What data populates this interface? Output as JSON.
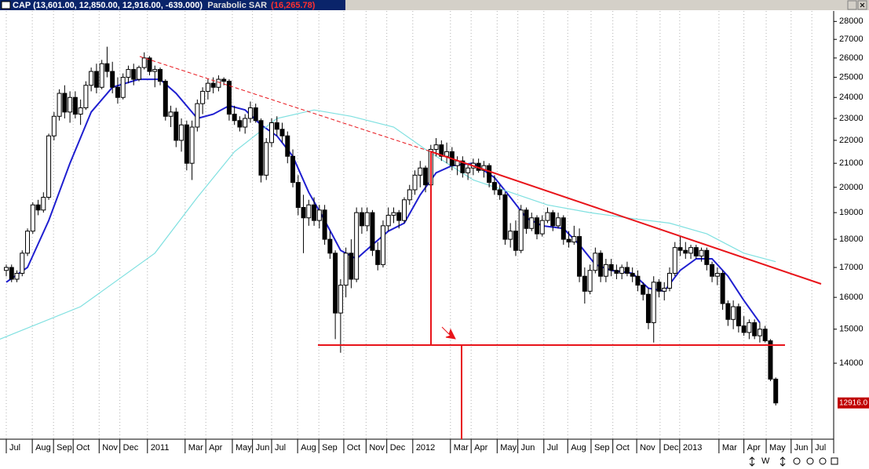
{
  "chart_data": {
    "type": "candlestick",
    "title": "CAP (13,601.00, 12,850.00, 12,916.00, -639.000)",
    "indicator": "Parabolic SAR",
    "indicator_value": "(16,265.78)",
    "last_label": "12916.0",
    "toolbar_label": "W",
    "log_scale": true,
    "ylim": [
      12000,
      28600
    ],
    "yticks": [
      14000,
      15000,
      16000,
      17000,
      18000,
      19000,
      20000,
      21000,
      22000,
      23000,
      24000,
      25000,
      26000,
      27000,
      28000
    ],
    "xlim": [
      -1.2,
      155
    ],
    "xticks": [
      {
        "value": 0,
        "label": "Jul"
      },
      {
        "value": 4.9,
        "label": "Aug"
      },
      {
        "value": 8.9,
        "label": "Sep"
      },
      {
        "value": 12.6,
        "label": "Oct"
      },
      {
        "value": 17.5,
        "label": "Nov"
      },
      {
        "value": 21.4,
        "label": "Dec"
      },
      {
        "value": 26.6,
        "label": "2011"
      },
      {
        "value": 33.7,
        "label": "Mar"
      },
      {
        "value": 37.6,
        "label": "Apr"
      },
      {
        "value": 42.6,
        "label": "May"
      },
      {
        "value": 46.4,
        "label": "Jun"
      },
      {
        "value": 50,
        "label": "Jul"
      },
      {
        "value": 54.9,
        "label": "Aug"
      },
      {
        "value": 58.9,
        "label": "Sep"
      },
      {
        "value": 63.6,
        "label": "Oct"
      },
      {
        "value": 67.8,
        "label": "Nov"
      },
      {
        "value": 71.7,
        "label": "Dec"
      },
      {
        "value": 76.6,
        "label": "2012"
      },
      {
        "value": 83.7,
        "label": "Mar"
      },
      {
        "value": 87.6,
        "label": "Apr"
      },
      {
        "value": 92.5,
        "label": "May"
      },
      {
        "value": 96.4,
        "label": "Jun"
      },
      {
        "value": 101.3,
        "label": "Jul"
      },
      {
        "value": 105.8,
        "label": "Aug"
      },
      {
        "value": 110.2,
        "label": "Sep"
      },
      {
        "value": 114.3,
        "label": "Oct"
      },
      {
        "value": 118.8,
        "label": "Nov"
      },
      {
        "value": 123.2,
        "label": "Dec"
      },
      {
        "value": 126.9,
        "label": "2013"
      },
      {
        "value": 134.3,
        "label": "Mar"
      },
      {
        "value": 139,
        "label": "Apr"
      },
      {
        "value": 143.2,
        "label": "May"
      },
      {
        "value": 147.9,
        "label": "Jun"
      },
      {
        "value": 151.8,
        "label": "Jul"
      }
    ],
    "grid": true,
    "up_color": "#ffffff",
    "down_color": "#000000",
    "ohlc": [
      [
        16900,
        17100,
        16700,
        17000
      ],
      [
        17000,
        17100,
        16500,
        16600
      ],
      [
        16600,
        16900,
        16500,
        16800
      ],
      [
        16800,
        17600,
        16700,
        17500
      ],
      [
        17500,
        18400,
        17400,
        18300
      ],
      [
        18300,
        19400,
        18200,
        19300
      ],
      [
        19300,
        19500,
        18900,
        19100
      ],
      [
        19100,
        19800,
        19000,
        19600
      ],
      [
        19600,
        22300,
        19500,
        22200
      ],
      [
        22200,
        23300,
        22000,
        23100
      ],
      [
        23100,
        24400,
        22900,
        24200
      ],
      [
        24200,
        24600,
        23000,
        23300
      ],
      [
        23300,
        24300,
        22800,
        24000
      ],
      [
        24000,
        24300,
        23000,
        23200
      ],
      [
        23200,
        23900,
        22700,
        23500
      ],
      [
        23500,
        24800,
        23400,
        24600
      ],
      [
        24600,
        25500,
        24300,
        25300
      ],
      [
        25300,
        25700,
        24200,
        24500
      ],
      [
        24500,
        25900,
        24400,
        25700
      ],
      [
        25700,
        26600,
        25000,
        25300
      ],
      [
        25300,
        25800,
        24200,
        24500
      ],
      [
        24500,
        25000,
        23700,
        24000
      ],
      [
        24000,
        25200,
        23900,
        25000
      ],
      [
        25000,
        25600,
        24700,
        25400
      ],
      [
        25400,
        25700,
        24600,
        24900
      ],
      [
        24900,
        25600,
        24800,
        25500
      ],
      [
        25500,
        26300,
        25400,
        26000
      ],
      [
        26000,
        26100,
        25100,
        25300
      ],
      [
        25300,
        25600,
        24500,
        25400
      ],
      [
        25400,
        25500,
        24600,
        24800
      ],
      [
        24800,
        24900,
        22900,
        23100
      ],
      [
        23100,
        23600,
        22600,
        23300
      ],
      [
        23300,
        23500,
        21700,
        22000
      ],
      [
        22000,
        23000,
        21500,
        22700
      ],
      [
        22700,
        22900,
        20700,
        21000
      ],
      [
        21000,
        22900,
        20300,
        22600
      ],
      [
        22600,
        23900,
        22400,
        23700
      ],
      [
        23700,
        24500,
        23200,
        24300
      ],
      [
        24300,
        24900,
        23900,
        24700
      ],
      [
        24700,
        25000,
        24200,
        24500
      ],
      [
        24500,
        25100,
        24300,
        24900
      ],
      [
        24900,
        25000,
        24600,
        24800
      ],
      [
        24800,
        24900,
        22900,
        23200
      ],
      [
        23200,
        23600,
        22700,
        22900
      ],
      [
        22900,
        23100,
        22400,
        22600
      ],
      [
        22600,
        23200,
        22300,
        23000
      ],
      [
        23000,
        23800,
        22800,
        23500
      ],
      [
        23500,
        23700,
        22800,
        22900
      ],
      [
        22900,
        23000,
        20200,
        20500
      ],
      [
        20500,
        22100,
        20300,
        21900
      ],
      [
        21900,
        23000,
        21700,
        22800
      ],
      [
        22800,
        23100,
        22200,
        22500
      ],
      [
        22500,
        22800,
        21900,
        22200
      ],
      [
        22200,
        22400,
        21000,
        21300
      ],
      [
        21300,
        21600,
        20000,
        20200
      ],
      [
        20200,
        20500,
        18900,
        19200
      ],
      [
        19200,
        19700,
        17500,
        18800
      ],
      [
        18800,
        19500,
        18500,
        19300
      ],
      [
        19300,
        19600,
        18500,
        18700
      ],
      [
        18700,
        19300,
        18400,
        19100
      ],
      [
        19100,
        19300,
        17800,
        18000
      ],
      [
        18000,
        18300,
        17300,
        17500
      ],
      [
        17500,
        17600,
        14700,
        15500
      ],
      [
        15500,
        16600,
        14300,
        16400
      ],
      [
        16400,
        17700,
        16000,
        17500
      ],
      [
        17500,
        18000,
        16300,
        16600
      ],
      [
        16600,
        19200,
        16500,
        19000
      ],
      [
        19000,
        19200,
        18200,
        18500
      ],
      [
        18500,
        19200,
        18300,
        19000
      ],
      [
        19000,
        19100,
        17400,
        17600
      ],
      [
        17600,
        17900,
        16900,
        17100
      ],
      [
        17100,
        18700,
        17000,
        18500
      ],
      [
        18500,
        19200,
        18300,
        18900
      ],
      [
        18900,
        19200,
        18600,
        19000
      ],
      [
        19000,
        19100,
        18400,
        18700
      ],
      [
        18700,
        19600,
        18600,
        19500
      ],
      [
        19500,
        20100,
        19300,
        19900
      ],
      [
        19900,
        20700,
        19700,
        20500
      ],
      [
        20500,
        21100,
        20000,
        20800
      ],
      [
        20800,
        20900,
        19800,
        20100
      ],
      [
        20100,
        21800,
        20000,
        21600
      ],
      [
        21600,
        22100,
        21300,
        21800
      ],
      [
        21800,
        22000,
        21100,
        21300
      ],
      [
        21300,
        21900,
        21000,
        21500
      ],
      [
        21500,
        21700,
        20700,
        20900
      ],
      [
        20900,
        21300,
        20500,
        21100
      ],
      [
        21100,
        21300,
        20400,
        20600
      ],
      [
        20600,
        21000,
        20300,
        20800
      ],
      [
        20800,
        21200,
        20500,
        21000
      ],
      [
        21000,
        21200,
        20600,
        20700
      ],
      [
        20700,
        21100,
        20400,
        20900
      ],
      [
        20900,
        21000,
        20000,
        20200
      ],
      [
        20200,
        20500,
        19700,
        19900
      ],
      [
        19900,
        20100,
        19500,
        19700
      ],
      [
        19700,
        19800,
        17800,
        18000
      ],
      [
        18000,
        18600,
        17700,
        18300
      ],
      [
        18300,
        18700,
        17400,
        17600
      ],
      [
        17600,
        19300,
        17500,
        19100
      ],
      [
        19100,
        19200,
        18200,
        18400
      ],
      [
        18400,
        19000,
        18300,
        18800
      ],
      [
        18800,
        18900,
        18000,
        18200
      ],
      [
        18200,
        18900,
        18100,
        18700
      ],
      [
        18700,
        19200,
        18600,
        19000
      ],
      [
        19000,
        19100,
        18300,
        18500
      ],
      [
        18500,
        19000,
        18400,
        18800
      ],
      [
        18800,
        18900,
        17800,
        18000
      ],
      [
        18000,
        18300,
        17700,
        17900
      ],
      [
        17900,
        18500,
        17800,
        18100
      ],
      [
        18100,
        18400,
        16500,
        16700
      ],
      [
        16700,
        17000,
        15800,
        16200
      ],
      [
        16200,
        17100,
        16100,
        16900
      ],
      [
        16900,
        17700,
        16800,
        17500
      ],
      [
        17500,
        17600,
        16500,
        16700
      ],
      [
        16700,
        17300,
        16500,
        17100
      ],
      [
        17100,
        17300,
        16700,
        16900
      ],
      [
        16900,
        17100,
        16600,
        16800
      ],
      [
        16800,
        17100,
        16600,
        17000
      ],
      [
        17000,
        17200,
        16700,
        16800
      ],
      [
        16800,
        17000,
        16500,
        16700
      ],
      [
        16700,
        16900,
        16200,
        16400
      ],
      [
        16400,
        16500,
        15900,
        16100
      ],
      [
        16100,
        16300,
        15000,
        15200
      ],
      [
        15200,
        16700,
        14600,
        16500
      ],
      [
        16500,
        16600,
        16000,
        16200
      ],
      [
        16200,
        16500,
        15900,
        16300
      ],
      [
        16300,
        17000,
        16200,
        16800
      ],
      [
        16800,
        17900,
        16700,
        17700
      ],
      [
        17700,
        18100,
        17400,
        17600
      ],
      [
        17600,
        17900,
        17300,
        17500
      ],
      [
        17500,
        17800,
        17300,
        17700
      ],
      [
        17700,
        17800,
        17300,
        17400
      ],
      [
        17400,
        17700,
        17200,
        17600
      ],
      [
        17600,
        17700,
        16900,
        17100
      ],
      [
        17100,
        17200,
        16500,
        16700
      ],
      [
        16700,
        17000,
        16400,
        16800
      ],
      [
        16800,
        16900,
        15600,
        15800
      ],
      [
        15800,
        15900,
        15100,
        15300
      ],
      [
        15300,
        15900,
        15000,
        15700
      ],
      [
        15700,
        15800,
        14900,
        15100
      ],
      [
        15100,
        15400,
        14800,
        14900
      ],
      [
        14900,
        15300,
        14700,
        15200
      ],
      [
        15200,
        15300,
        14700,
        14800
      ],
      [
        14800,
        15200,
        14600,
        15000
      ],
      [
        15000,
        15100,
        14600,
        14650
      ],
      [
        14650,
        14700,
        13500,
        13555
      ],
      [
        13555,
        13601,
        12850,
        12916
      ]
    ],
    "lines": [
      {
        "color": "#1f1fd0",
        "x": [
          0,
          4,
          8,
          12,
          16,
          20,
          25,
          29,
          32,
          36,
          39,
          42,
          45,
          48,
          51,
          54,
          57,
          60,
          63,
          66,
          69,
          72,
          75,
          78,
          81,
          84,
          88,
          92,
          95,
          98,
          101,
          105,
          108,
          111,
          114,
          118,
          121,
          124,
          127,
          130,
          133,
          136,
          139,
          142
        ],
        "values": [
          16500,
          17000,
          18700,
          21000,
          23300,
          24500,
          24900,
          24900,
          24200,
          23000,
          23200,
          23600,
          23400,
          22700,
          22200,
          21300,
          19800,
          18700,
          17600,
          17300,
          17800,
          18300,
          18600,
          19700,
          20600,
          20900,
          21000,
          20400,
          19600,
          18800,
          18500,
          18400,
          17800,
          17100,
          16900,
          16800,
          16300,
          16200,
          16900,
          17300,
          17300,
          16700,
          15900,
          15200
        ]
      },
      {
        "color": "#7fe0e0",
        "x": [
          -1.2,
          14,
          28,
          36,
          43,
          51,
          58,
          65,
          73,
          79,
          88,
          95,
          102,
          110,
          117,
          125,
          132,
          139,
          145
        ],
        "values": [
          14700,
          15700,
          17500,
          19600,
          21500,
          23000,
          23400,
          23100,
          22600,
          21600,
          20300,
          19800,
          19300,
          19000,
          18800,
          18600,
          18200,
          17500,
          17200
        ]
      }
    ]
  }
}
